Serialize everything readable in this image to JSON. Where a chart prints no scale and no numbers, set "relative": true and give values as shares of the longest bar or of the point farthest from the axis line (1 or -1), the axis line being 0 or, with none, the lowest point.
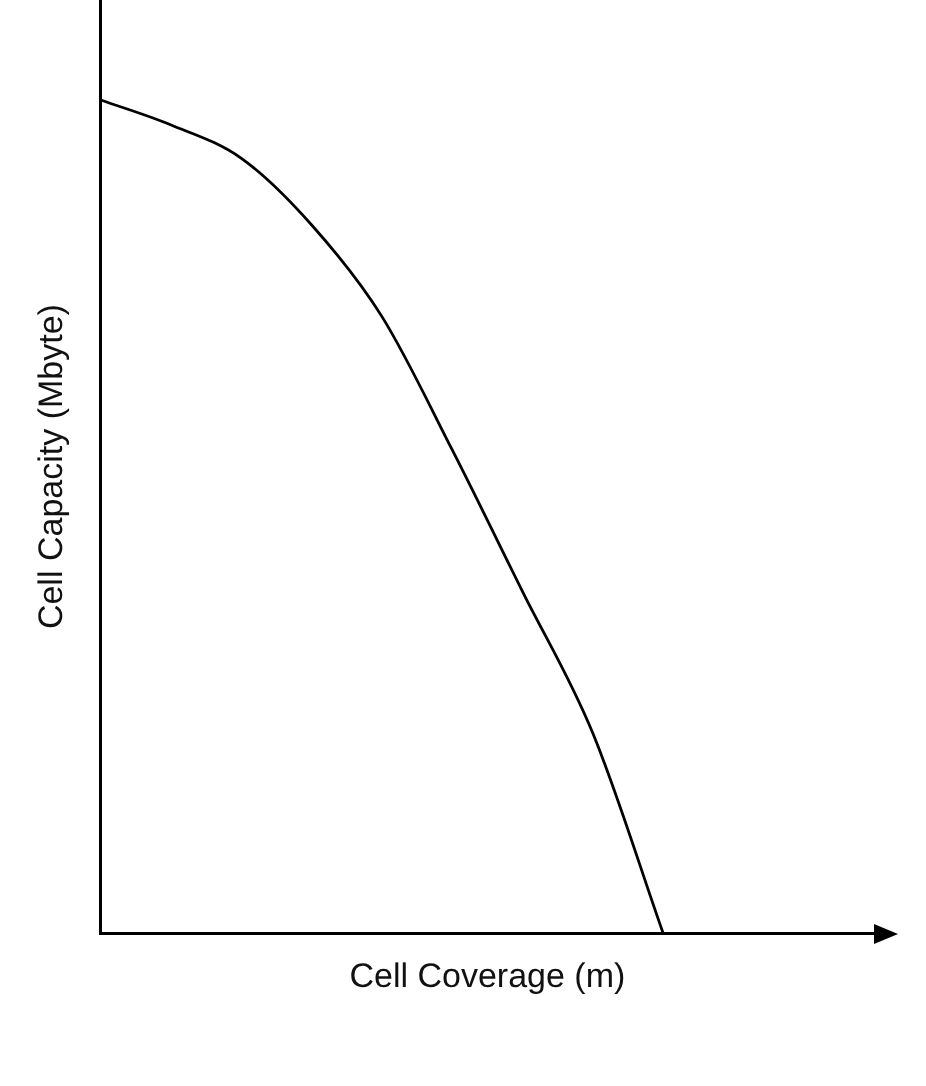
{
  "chart_data": {
    "type": "line",
    "xlabel": "Cell Coverage (m)",
    "ylabel": "Cell Capacity (Mbyte)",
    "categories": [
      null,
      null,
      null,
      null,
      null,
      null,
      null,
      null,
      null,
      null,
      null,
      null
    ],
    "series": [
      {
        "color": "#000000",
        "values": [
          1,
          0.97,
          0.93,
          0.85,
          0.74,
          0.58,
          0.41,
          0.24,
          0,
          null,
          null,
          null
        ]
      }
    ],
    "relative": true,
    "tick_labels": false,
    "grid": false,
    "marker": "none",
    "line_style": "solid"
  }
}
